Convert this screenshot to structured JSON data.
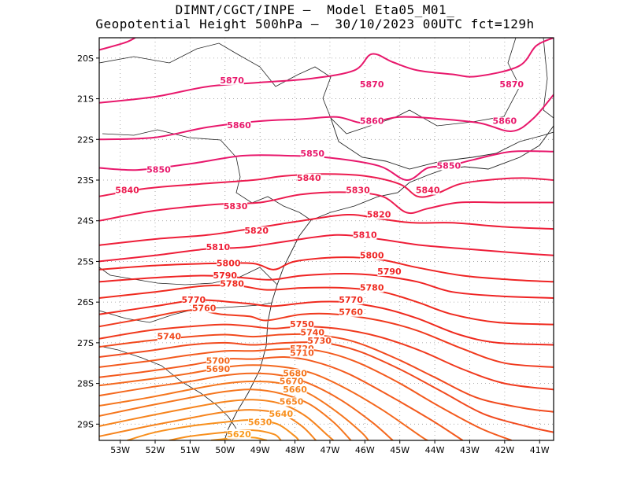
{
  "title": {
    "line1": "DIMNT/CGCT/INPE –  Model Eta05_M01_",
    "line2": "Geopotential Height 500hPa –  30/10/2023 00UTC fct=129h"
  },
  "axes": {
    "lat_labels": [
      "20S",
      "21S",
      "22S",
      "23S",
      "24S",
      "25S",
      "26S",
      "27S",
      "28S",
      "29S"
    ],
    "lon_labels": [
      "53W",
      "52W",
      "51W",
      "50W",
      "49W",
      "48W",
      "47W",
      "46W",
      "45W",
      "44W",
      "43W",
      "42W",
      "41W"
    ],
    "lat_range": [
      -19.5,
      -29.4
    ],
    "lon_range": [
      -53.6,
      -40.6
    ],
    "grid": "dotted"
  },
  "contour_labels": [
    {
      "text": "5870",
      "lon": -49.8,
      "lat": -20.6,
      "color": "#e8186c"
    },
    {
      "text": "5870",
      "lon": -45.8,
      "lat": -20.7,
      "color": "#e8186c"
    },
    {
      "text": "5870",
      "lon": -41.8,
      "lat": -20.7,
      "color": "#e8186c"
    },
    {
      "text": "5860",
      "lon": -49.6,
      "lat": -21.7,
      "color": "#e8186c"
    },
    {
      "text": "5860",
      "lon": -45.8,
      "lat": -21.6,
      "color": "#e8186c"
    },
    {
      "text": "5860",
      "lon": -42.0,
      "lat": -21.6,
      "color": "#e8186c"
    },
    {
      "text": "5850",
      "lon": -47.5,
      "lat": -22.4,
      "color": "#e8186c"
    },
    {
      "text": "5850",
      "lon": -51.9,
      "lat": -22.8,
      "color": "#e8186c"
    },
    {
      "text": "5850",
      "lon": -43.6,
      "lat": -22.7,
      "color": "#e8186c"
    },
    {
      "text": "5840",
      "lon": -52.8,
      "lat": -23.3,
      "color": "#ec1c50"
    },
    {
      "text": "5840",
      "lon": -47.6,
      "lat": -23.0,
      "color": "#ec1c50"
    },
    {
      "text": "5840",
      "lon": -44.2,
      "lat": -23.3,
      "color": "#ec1c50"
    },
    {
      "text": "5830",
      "lon": -46.2,
      "lat": -23.3,
      "color": "#ec1c50"
    },
    {
      "text": "5830",
      "lon": -49.7,
      "lat": -23.7,
      "color": "#ec1c50"
    },
    {
      "text": "5820",
      "lon": -45.6,
      "lat": -23.9,
      "color": "#ee1e38"
    },
    {
      "text": "5820",
      "lon": -49.1,
      "lat": -24.3,
      "color": "#ee1e38"
    },
    {
      "text": "5810",
      "lon": -46.0,
      "lat": -24.4,
      "color": "#ee1e38"
    },
    {
      "text": "5810",
      "lon": -50.2,
      "lat": -24.7,
      "color": "#ee1e38"
    },
    {
      "text": "5800",
      "lon": -45.8,
      "lat": -24.9,
      "color": "#ef2424"
    },
    {
      "text": "5800",
      "lon": -49.9,
      "lat": -25.1,
      "color": "#ef2424"
    },
    {
      "text": "5790",
      "lon": -45.3,
      "lat": -25.3,
      "color": "#ef2424"
    },
    {
      "text": "5790",
      "lon": -50.0,
      "lat": -25.4,
      "color": "#ef2424"
    },
    {
      "text": "5780",
      "lon": -45.8,
      "lat": -25.7,
      "color": "#ef2a1e"
    },
    {
      "text": "5780",
      "lon": -49.8,
      "lat": -25.6,
      "color": "#ef2a1e"
    },
    {
      "text": "5770",
      "lon": -46.4,
      "lat": -26.0,
      "color": "#ef2a1e"
    },
    {
      "text": "5770",
      "lon": -50.9,
      "lat": -26.0,
      "color": "#ef2a1e"
    },
    {
      "text": "5760",
      "lon": -46.4,
      "lat": -26.3,
      "color": "#f03a1e"
    },
    {
      "text": "5760",
      "lon": -50.6,
      "lat": -26.2,
      "color": "#f03a1e"
    },
    {
      "text": "5750",
      "lon": -47.8,
      "lat": -26.6,
      "color": "#f03a1e"
    },
    {
      "text": "5740",
      "lon": -47.5,
      "lat": -26.8,
      "color": "#f14a1e"
    },
    {
      "text": "5740",
      "lon": -51.6,
      "lat": -26.9,
      "color": "#f14a1e"
    },
    {
      "text": "5730",
      "lon": -47.3,
      "lat": -27.0,
      "color": "#f14a1e"
    },
    {
      "text": "5720",
      "lon": -47.8,
      "lat": -27.2,
      "color": "#f35a1e"
    },
    {
      "text": "5710",
      "lon": -47.8,
      "lat": -27.3,
      "color": "#f35a1e"
    },
    {
      "text": "5700",
      "lon": -50.2,
      "lat": -27.5,
      "color": "#f4681e"
    },
    {
      "text": "5690",
      "lon": -50.2,
      "lat": -27.7,
      "color": "#f4681e"
    },
    {
      "text": "5680",
      "lon": -48.0,
      "lat": -27.8,
      "color": "#f5761e"
    },
    {
      "text": "5670",
      "lon": -48.1,
      "lat": -28.0,
      "color": "#f5761e"
    },
    {
      "text": "5660",
      "lon": -48.0,
      "lat": -28.2,
      "color": "#f6841e"
    },
    {
      "text": "5650",
      "lon": -48.1,
      "lat": -28.5,
      "color": "#f6841e"
    },
    {
      "text": "5640",
      "lon": -48.4,
      "lat": -28.8,
      "color": "#f8901e"
    },
    {
      "text": "5630",
      "lon": -49.0,
      "lat": -29.0,
      "color": "#f8901e"
    },
    {
      "text": "5620",
      "lon": -49.6,
      "lat": -29.3,
      "color": "#f99a1e"
    }
  ]
}
